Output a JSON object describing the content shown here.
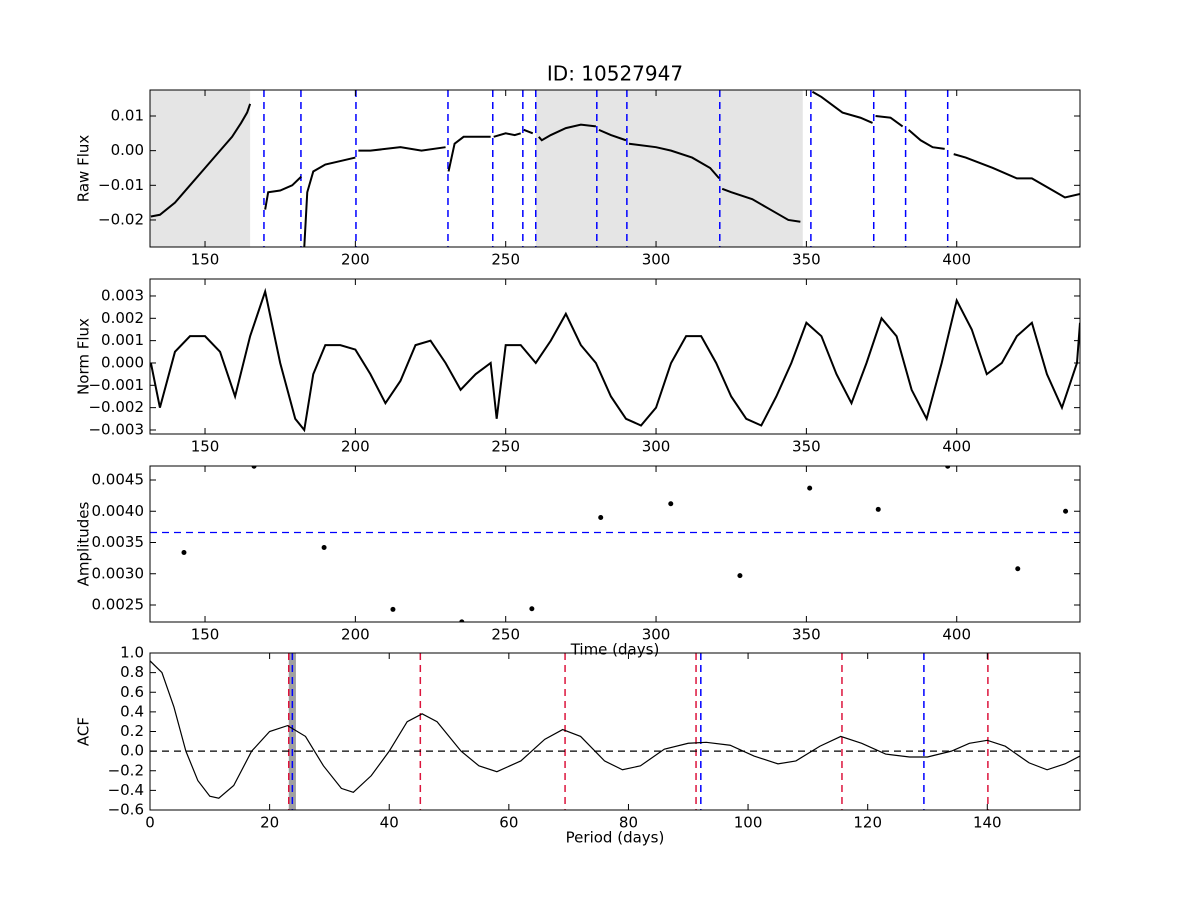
{
  "chart_data": [
    {
      "type": "line",
      "title": "ID: 10527947",
      "ylabel": "Raw Flux",
      "color": "#000000",
      "xlim": [
        131.7,
        441
      ],
      "ylim": [
        -0.0278,
        0.0175
      ],
      "xticks": [
        150,
        200,
        250,
        300,
        350,
        400
      ],
      "yticks": [
        {
          "value": 0.01,
          "label": "0.01"
        },
        {
          "value": 0,
          "label": "0.00"
        },
        {
          "value": -0.01,
          "label": "−0.01"
        },
        {
          "value": -0.02,
          "label": "−0.02"
        }
      ],
      "spans": [
        [
          131.7,
          165.0
        ],
        [
          260.0,
          348.8
        ]
      ],
      "span_color": "#e5e5e5",
      "vlines": [
        {
          "color": "#0000ff",
          "x": [
            169.6,
            181.9,
            200.2,
            230.8,
            245.7,
            255.7,
            260.0,
            280.3,
            290.3,
            321.2,
            351.5,
            372.4,
            383.0,
            397.0
          ]
        }
      ],
      "x": [
        132,
        135,
        140,
        145,
        150,
        155,
        159,
        162,
        164,
        165,
        167,
        170,
        171,
        175,
        179,
        182,
        182.5,
        183,
        184,
        186,
        190,
        195,
        200,
        200.3,
        201,
        205,
        215,
        222,
        230,
        230.5,
        231,
        233,
        236,
        245,
        245.5,
        246,
        250,
        253,
        255,
        255.5,
        256,
        259,
        259.5,
        261,
        262,
        265,
        270,
        275,
        280,
        280.5,
        281,
        285,
        290,
        290.5,
        291,
        300,
        305,
        312,
        318,
        321,
        321.5,
        322,
        325,
        332,
        338,
        344,
        348,
        350,
        352,
        355,
        362,
        368,
        372,
        372.2,
        373,
        378,
        382,
        382.5,
        384,
        388,
        392,
        396,
        397.5,
        399,
        403,
        412,
        420,
        425,
        432,
        436,
        441
      ],
      "values": [
        -0.019,
        -0.0185,
        -0.015,
        -0.01,
        -0.005,
        0,
        0.004,
        0.008,
        0.011,
        0.0135,
        null,
        -0.017,
        -0.012,
        -0.0115,
        -0.01,
        -0.0075,
        null,
        -0.028,
        -0.012,
        -0.006,
        -0.004,
        -0.003,
        -0.002,
        null,
        0,
        0,
        0.001,
        0,
        0.001,
        null,
        -0.006,
        0.002,
        0.004,
        0.004,
        null,
        0.004,
        0.005,
        0.0045,
        0.005,
        null,
        0.006,
        0.005,
        null,
        0.004,
        0.003,
        0.0045,
        0.0065,
        0.0075,
        0.007,
        null,
        0.006,
        0.0045,
        0.003,
        null,
        0.002,
        0.001,
        0,
        -0.002,
        -0.005,
        -0.008,
        null,
        -0.011,
        -0.012,
        -0.014,
        -0.017,
        -0.02,
        -0.0205,
        null,
        0.017,
        0.0155,
        0.011,
        0.0095,
        0.008,
        null,
        0.01,
        0.0095,
        0.007,
        null,
        0.006,
        0.003,
        0.001,
        0.0005,
        null,
        -0.001,
        -0.002,
        -0.005,
        -0.008,
        -0.008,
        -0.0115,
        -0.0135,
        -0.0125
      ]
    },
    {
      "type": "line",
      "ylabel": "Norm Flux",
      "color": "#000000",
      "xlim": [
        131.7,
        441
      ],
      "ylim": [
        -0.00318,
        0.00376
      ],
      "xticks": [
        150,
        200,
        250,
        300,
        350,
        400
      ],
      "yticks": [
        {
          "value": 0.003,
          "label": "0.003"
        },
        {
          "value": 0.002,
          "label": "0.002"
        },
        {
          "value": 0.001,
          "label": "0.001"
        },
        {
          "value": 0,
          "label": "0.000"
        },
        {
          "value": -0.001,
          "label": "−0.001"
        },
        {
          "value": -0.002,
          "label": "−0.002"
        },
        {
          "value": -0.003,
          "label": "−0.003"
        }
      ],
      "x": [
        132,
        135,
        140,
        145,
        150,
        155,
        160,
        165,
        170,
        175,
        180,
        183,
        186,
        190,
        195,
        200,
        205,
        210,
        215,
        220,
        225,
        230,
        235,
        240,
        245,
        247,
        250,
        255,
        260,
        265,
        270,
        275,
        280,
        285,
        290,
        295,
        300,
        305,
        310,
        315,
        320,
        325,
        330,
        335,
        340,
        345,
        350,
        355,
        360,
        365,
        370,
        375,
        380,
        385,
        390,
        395,
        400,
        405,
        410,
        415,
        420,
        425,
        430,
        435,
        440,
        441
      ],
      "values": [
        0,
        -0.002,
        0.0005,
        0.0012,
        0.0012,
        0.0005,
        -0.0015,
        0.0012,
        0.0032,
        0,
        -0.0025,
        -0.003,
        -0.0005,
        0.0008,
        0.0008,
        0.0006,
        -0.0005,
        -0.0018,
        -0.0008,
        0.0008,
        0.001,
        0,
        -0.0012,
        -0.0005,
        0,
        -0.0025,
        0.0008,
        0.0008,
        0,
        0.001,
        0.0022,
        0.0008,
        0,
        -0.0015,
        -0.0025,
        -0.0028,
        -0.002,
        0,
        0.0012,
        0.0012,
        0,
        -0.0015,
        -0.0025,
        -0.0028,
        -0.0015,
        0,
        0.0018,
        0.0012,
        -0.0005,
        -0.0018,
        0,
        0.002,
        0.0012,
        -0.0012,
        -0.0025,
        0,
        0.0028,
        0.0015,
        -0.0005,
        0,
        0.0012,
        0.0018,
        -0.0005,
        -0.002,
        0,
        0.0018
      ]
    },
    {
      "type": "scatter",
      "ylabel": "Amplitudes",
      "xlabel": "Time (days)",
      "color": "#000000",
      "xlim": [
        131.7,
        441
      ],
      "ylim": [
        0.002228,
        0.004724
      ],
      "xticks": [
        150,
        200,
        250,
        300,
        350,
        400
      ],
      "yticks": [
        {
          "value": 0.0045,
          "label": "0.0045"
        },
        {
          "value": 0.004,
          "label": "0.0040"
        },
        {
          "value": 0.0035,
          "label": "0.0035"
        },
        {
          "value": 0.003,
          "label": "0.0030"
        },
        {
          "value": 0.0025,
          "label": "0.0025"
        }
      ],
      "hlines": [
        {
          "color": "#0000ff",
          "y": [
            0.00366
          ]
        }
      ],
      "x": [
        143.0,
        166.3,
        189.6,
        212.5,
        235.4,
        258.7,
        281.6,
        304.9,
        327.9,
        351.1,
        373.9,
        397.0,
        420.3,
        436.2
      ],
      "values": [
        0.00334,
        0.00472,
        0.00342,
        0.00243,
        0.00223,
        0.00244,
        0.0039,
        0.00412,
        0.00297,
        0.00437,
        0.00403,
        0.00472,
        0.00308,
        0.004
      ]
    },
    {
      "type": "line",
      "ylabel": "ACF",
      "xlabel": "Period (days)",
      "color": "#000000",
      "xlim": [
        0,
        155.5
      ],
      "ylim": [
        -0.6,
        1.0
      ],
      "xticks": [
        0,
        20,
        40,
        60,
        80,
        100,
        120,
        140
      ],
      "yticks": [
        {
          "value": 1,
          "label": "1.0"
        },
        {
          "value": 0.8,
          "label": "0.8"
        },
        {
          "value": 0.6,
          "label": "0.6"
        },
        {
          "value": 0.4,
          "label": "0.4"
        },
        {
          "value": 0.2,
          "label": "0.2"
        },
        {
          "value": 0,
          "label": "0.0"
        },
        {
          "value": -0.2,
          "label": "−0.2"
        },
        {
          "value": -0.4,
          "label": "−0.4"
        },
        {
          "value": -0.6,
          "label": "−0.6"
        }
      ],
      "spans": [
        [
          23.2,
          24.4
        ]
      ],
      "span_color": "#a0a0a0",
      "vlines": [
        {
          "color": "#dc143c",
          "x": [
            23.2,
            45.2,
            69.4,
            91.3,
            115.7,
            140.1
          ]
        },
        {
          "color": "#0000ff",
          "x": [
            23.8,
            92.1,
            129.4
          ]
        }
      ],
      "hlines": [
        {
          "color": "#000000",
          "y": [
            0
          ]
        }
      ],
      "x": [
        0,
        2,
        4,
        6,
        8,
        10,
        11.5,
        14,
        17,
        20,
        23,
        26,
        29,
        32,
        34,
        37,
        40,
        43,
        45.5,
        48,
        52,
        55,
        58,
        62,
        66,
        69,
        72,
        76,
        79,
        82,
        86,
        90,
        93,
        97,
        101,
        105,
        108,
        112,
        115.5,
        119,
        123,
        127,
        130,
        134,
        137,
        140,
        143,
        147,
        150,
        153,
        155.5
      ],
      "values": [
        0.92,
        0.8,
        0.45,
        0,
        -0.3,
        -0.46,
        -0.48,
        -0.35,
        0,
        0.2,
        0.26,
        0.15,
        -0.15,
        -0.38,
        -0.42,
        -0.25,
        0,
        0.3,
        0.38,
        0.3,
        0,
        -0.15,
        -0.21,
        -0.1,
        0.12,
        0.22,
        0.15,
        -0.1,
        -0.19,
        -0.15,
        0.02,
        0.08,
        0.09,
        0.06,
        -0.05,
        -0.13,
        -0.1,
        0.05,
        0.15,
        0.08,
        -0.03,
        -0.06,
        -0.06,
        0,
        0.08,
        0.11,
        0.05,
        -0.12,
        -0.19,
        -0.13,
        -0.05
      ]
    }
  ]
}
